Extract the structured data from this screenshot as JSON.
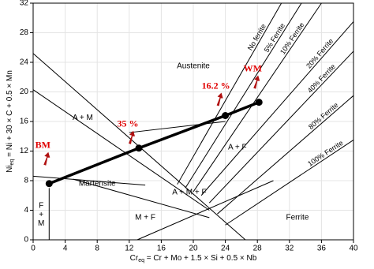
{
  "chart_data": {
    "type": "line",
    "xlabel": {
      "main": "Cr",
      "sub": "eq",
      "rest": " = Cr + Mo + 1.5 × Si + 0.5 × Nb"
    },
    "ylabel": {
      "main": "Ni",
      "sub": "eq",
      "rest": " = Ni + 30 × C + 0.5 × Mn"
    },
    "xlim": [
      0,
      40
    ],
    "ylim": [
      0,
      32
    ],
    "xticks": [
      0,
      4,
      8,
      12,
      16,
      20,
      24,
      28,
      32,
      36,
      40
    ],
    "yticks": [
      0,
      4,
      8,
      12,
      16,
      20,
      24,
      28,
      32
    ],
    "grid": true,
    "series": [
      {
        "color": "#000000",
        "x": [
          2,
          13.2,
          24,
          28.2
        ],
        "values": [
          7.6,
          12.4,
          16.8,
          18.6
        ],
        "point_labels": [
          "BM",
          "35 %",
          "16.2 %",
          "WM"
        ],
        "label_color": "#e00000"
      }
    ],
    "ferrite_lines": [
      {
        "name": "No ferrite",
        "x": [
          18,
          31
        ],
        "y": [
          7.5,
          32
        ]
      },
      {
        "name": "5% Ferrite",
        "x": [
          19,
          33.5
        ],
        "y": [
          7,
          32
        ]
      },
      {
        "name": "10% Ferrite",
        "x": [
          20,
          36
        ],
        "y": [
          6.5,
          32
        ]
      },
      {
        "name": "20% Ferrite",
        "x": [
          21,
          40
        ],
        "y": [
          6,
          29.5
        ]
      },
      {
        "name": "40% Ferrite",
        "x": [
          22,
          40
        ],
        "y": [
          5,
          25.5
        ]
      },
      {
        "name": "80% Ferrite",
        "x": [
          23,
          40
        ],
        "y": [
          3.5,
          19.5
        ]
      },
      {
        "name": "100% Ferrite",
        "x": [
          24,
          40
        ],
        "y": [
          2,
          13.5
        ]
      }
    ],
    "boundaries": [
      {
        "x": [
          0,
          26.5
        ],
        "y": [
          25.2,
          0
        ]
      },
      {
        "x": [
          0,
          22
        ],
        "y": [
          20.3,
          4
        ]
      },
      {
        "x": [
          0,
          14
        ],
        "y": [
          8.6,
          7.4
        ]
      },
      {
        "x": [
          5,
          22
        ],
        "y": [
          8.2,
          3
        ]
      },
      {
        "x": [
          2,
          2
        ],
        "y": [
          0,
          7
        ]
      },
      {
        "x": [
          12,
          24
        ],
        "y": [
          14.5,
          16
        ]
      },
      {
        "x": [
          13,
          30
        ],
        "y": [
          0,
          8
        ]
      }
    ],
    "regions": [
      "Austenite",
      "A + M",
      "Martensite",
      "A + M + F",
      "M + F",
      "A + F",
      "Ferrite",
      "F",
      "+",
      "M"
    ]
  }
}
